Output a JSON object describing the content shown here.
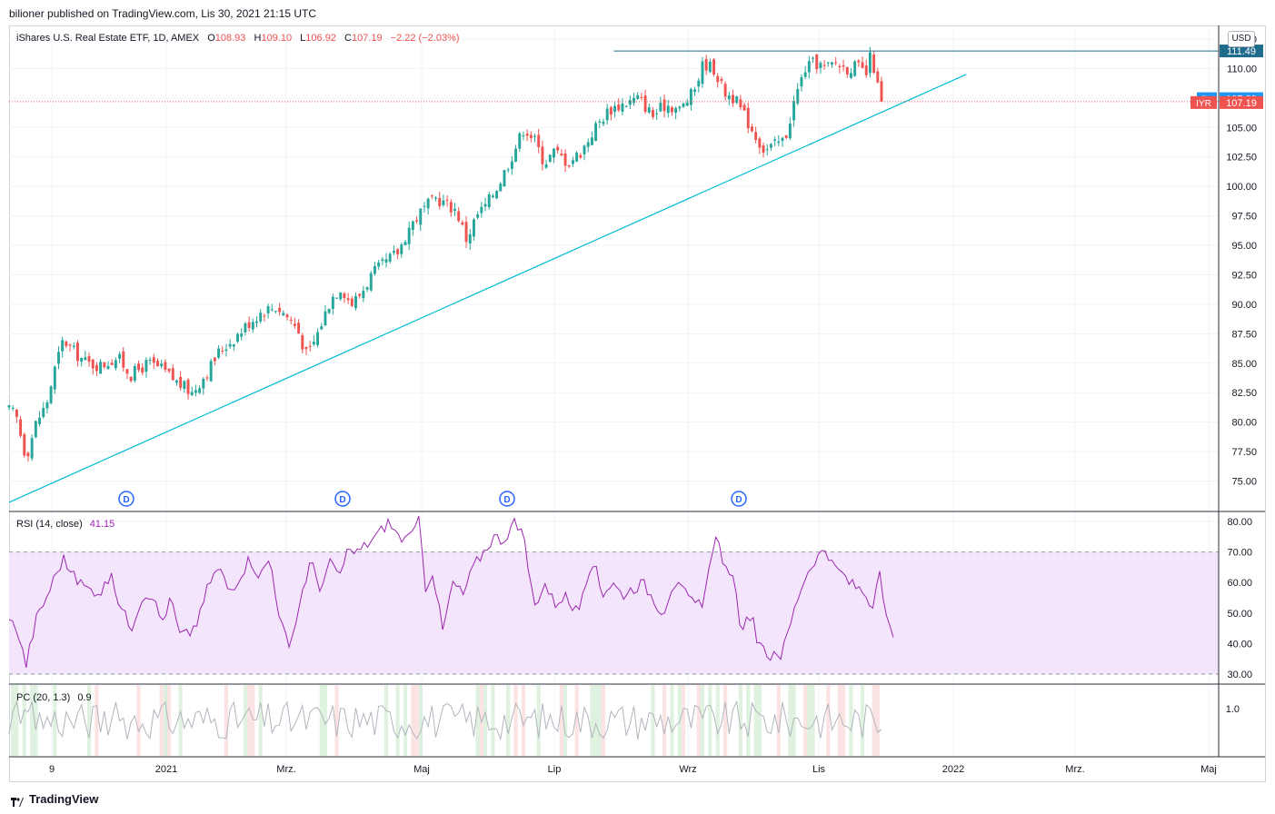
{
  "header": {
    "published": "bilioner published on TradingView.com, Lis 30, 2021 21:15 UTC"
  },
  "legend": {
    "symbol": "iShares U.S. Real Estate ETF, 1D, AMEX",
    "o_label": "O",
    "o_value": "108.93",
    "h_label": "H",
    "h_value": "109.10",
    "l_label": "L",
    "l_value": "106.92",
    "c_label": "C",
    "c_value": "107.19",
    "change": "−2.22 (−2.03%)"
  },
  "currency": "USD",
  "rsi": {
    "title": "RSI (14, close)",
    "value": "41.15"
  },
  "pc": {
    "title": "PC (20, 1.3)",
    "value": "0.9"
  },
  "footer": {
    "brand": "TradingView"
  },
  "colors": {
    "up": "#26a69a",
    "down": "#ef5350",
    "trendline": "#00bcd4",
    "resistance": "#1e6b8c",
    "rsi_line": "#9c27b0",
    "rsi_band": "#f3e5fc"
  },
  "chart_data": [
    {
      "type": "candlestick",
      "ylim": [
        72.5,
        113.5
      ],
      "y_ticks": [
        "75.00",
        "77.50",
        "80.00",
        "82.50",
        "85.00",
        "87.50",
        "90.00",
        "92.50",
        "95.00",
        "97.50",
        "100.00",
        "102.50",
        "105.00",
        "107.50",
        "110.00",
        "112.50"
      ],
      "x_ticks": [
        "9",
        "2021",
        "Mrz.",
        "Maj",
        "Lip",
        "Wrz",
        "Lis",
        "2022",
        "Mrz.",
        "Maj"
      ],
      "close_path": [
        {
          "x": 0,
          "y": 81.0
        },
        {
          "x": 4,
          "y": 80.6
        },
        {
          "x": 10,
          "y": 77.0
        },
        {
          "x": 16,
          "y": 80.0
        },
        {
          "x": 22,
          "y": 81.5
        },
        {
          "x": 27,
          "y": 84.5
        },
        {
          "x": 32,
          "y": 87.0
        },
        {
          "x": 38,
          "y": 86.0
        },
        {
          "x": 46,
          "y": 85.0
        },
        {
          "x": 54,
          "y": 84.8
        },
        {
          "x": 64,
          "y": 85.5
        },
        {
          "x": 72,
          "y": 84.0
        },
        {
          "x": 82,
          "y": 85.0
        },
        {
          "x": 90,
          "y": 84.5
        },
        {
          "x": 98,
          "y": 83.5
        },
        {
          "x": 108,
          "y": 82.5
        },
        {
          "x": 118,
          "y": 84.5
        },
        {
          "x": 124,
          "y": 86.0
        },
        {
          "x": 132,
          "y": 87.0
        },
        {
          "x": 142,
          "y": 88.5
        },
        {
          "x": 150,
          "y": 89.5
        },
        {
          "x": 158,
          "y": 89.8
        },
        {
          "x": 164,
          "y": 89.0
        },
        {
          "x": 170,
          "y": 88.0
        },
        {
          "x": 176,
          "y": 85.5
        },
        {
          "x": 182,
          "y": 87.5
        },
        {
          "x": 190,
          "y": 90.5
        },
        {
          "x": 196,
          "y": 91.5
        },
        {
          "x": 202,
          "y": 90.0
        },
        {
          "x": 208,
          "y": 91.0
        },
        {
          "x": 214,
          "y": 92.5
        },
        {
          "x": 222,
          "y": 93.5
        },
        {
          "x": 230,
          "y": 94.5
        },
        {
          "x": 236,
          "y": 96.5
        },
        {
          "x": 244,
          "y": 98.0
        },
        {
          "x": 252,
          "y": 99.0
        },
        {
          "x": 258,
          "y": 98.5
        },
        {
          "x": 264,
          "y": 98.0
        },
        {
          "x": 270,
          "y": 95.5
        },
        {
          "x": 276,
          "y": 97.5
        },
        {
          "x": 282,
          "y": 98.5
        },
        {
          "x": 290,
          "y": 100.5
        },
        {
          "x": 298,
          "y": 103.0
        },
        {
          "x": 304,
          "y": 105.0
        },
        {
          "x": 310,
          "y": 104.0
        },
        {
          "x": 316,
          "y": 102.0
        },
        {
          "x": 322,
          "y": 103.0
        },
        {
          "x": 330,
          "y": 102.0
        },
        {
          "x": 338,
          "y": 103.0
        },
        {
          "x": 346,
          "y": 105.0
        },
        {
          "x": 354,
          "y": 106.5
        },
        {
          "x": 362,
          "y": 107.0
        },
        {
          "x": 372,
          "y": 107.5
        },
        {
          "x": 380,
          "y": 106.0
        },
        {
          "x": 388,
          "y": 107.0
        },
        {
          "x": 396,
          "y": 106.5
        },
        {
          "x": 404,
          "y": 108.0
        },
        {
          "x": 410,
          "y": 110.5
        },
        {
          "x": 416,
          "y": 110.0
        },
        {
          "x": 422,
          "y": 108.0
        },
        {
          "x": 428,
          "y": 107.5
        },
        {
          "x": 434,
          "y": 106.0
        },
        {
          "x": 440,
          "y": 104.5
        },
        {
          "x": 446,
          "y": 103.0
        },
        {
          "x": 452,
          "y": 103.5
        },
        {
          "x": 458,
          "y": 104.0
        },
        {
          "x": 464,
          "y": 107.5
        },
        {
          "x": 470,
          "y": 110.0
        },
        {
          "x": 476,
          "y": 110.5
        },
        {
          "x": 482,
          "y": 110.0
        },
        {
          "x": 488,
          "y": 110.5
        },
        {
          "x": 494,
          "y": 110.0
        },
        {
          "x": 500,
          "y": 110.2
        },
        {
          "x": 506,
          "y": 109.5
        },
        {
          "x": 509,
          "y": 111.3
        },
        {
          "x": 512,
          "y": 108.9
        },
        {
          "x": 515,
          "y": 107.19
        }
      ],
      "resistance": 111.49,
      "trendline": [
        {
          "x": 0,
          "y": 73.2
        },
        {
          "x": 565,
          "y": 109.5
        }
      ],
      "last_values": [
        {
          "label": "",
          "value": "111.49",
          "color": "#1e6b8c"
        },
        {
          "label": "Po",
          "value": "107.29",
          "color": "#2196f3"
        },
        {
          "label": "IYR",
          "value": "107.19",
          "color": "#ef5350"
        }
      ],
      "dividend_markers": [
        "D",
        "D",
        "D",
        "D"
      ],
      "x_domain": [
        0,
        710
      ]
    },
    {
      "type": "line",
      "title": "RSI (14, close)",
      "ylim": [
        27,
        83
      ],
      "y_ticks": [
        "30.00",
        "40.00",
        "50.00",
        "60.00",
        "70.00",
        "80.00"
      ],
      "band": [
        30,
        70
      ],
      "values_path": [
        {
          "x": 0,
          "y": 47
        },
        {
          "x": 4,
          "y": 46
        },
        {
          "x": 10,
          "y": 33
        },
        {
          "x": 16,
          "y": 48
        },
        {
          "x": 22,
          "y": 55
        },
        {
          "x": 27,
          "y": 62
        },
        {
          "x": 32,
          "y": 68
        },
        {
          "x": 38,
          "y": 62
        },
        {
          "x": 46,
          "y": 58
        },
        {
          "x": 54,
          "y": 57
        },
        {
          "x": 60,
          "y": 62
        },
        {
          "x": 66,
          "y": 52
        },
        {
          "x": 72,
          "y": 45
        },
        {
          "x": 78,
          "y": 55
        },
        {
          "x": 84,
          "y": 57
        },
        {
          "x": 90,
          "y": 47
        },
        {
          "x": 96,
          "y": 55
        },
        {
          "x": 100,
          "y": 43
        },
        {
          "x": 106,
          "y": 43
        },
        {
          "x": 112,
          "y": 48
        },
        {
          "x": 118,
          "y": 60
        },
        {
          "x": 124,
          "y": 65
        },
        {
          "x": 130,
          "y": 57
        },
        {
          "x": 136,
          "y": 62
        },
        {
          "x": 142,
          "y": 68
        },
        {
          "x": 148,
          "y": 62
        },
        {
          "x": 154,
          "y": 68
        },
        {
          "x": 160,
          "y": 48
        },
        {
          "x": 166,
          "y": 37
        },
        {
          "x": 172,
          "y": 55
        },
        {
          "x": 178,
          "y": 67
        },
        {
          "x": 184,
          "y": 58
        },
        {
          "x": 190,
          "y": 67
        },
        {
          "x": 196,
          "y": 62
        },
        {
          "x": 200,
          "y": 70
        },
        {
          "x": 206,
          "y": 70
        },
        {
          "x": 212,
          "y": 73
        },
        {
          "x": 218,
          "y": 76
        },
        {
          "x": 224,
          "y": 80
        },
        {
          "x": 230,
          "y": 75
        },
        {
          "x": 236,
          "y": 74
        },
        {
          "x": 242,
          "y": 80
        },
        {
          "x": 246,
          "y": 58
        },
        {
          "x": 250,
          "y": 64
        },
        {
          "x": 256,
          "y": 44
        },
        {
          "x": 262,
          "y": 60
        },
        {
          "x": 268,
          "y": 56
        },
        {
          "x": 274,
          "y": 65
        },
        {
          "x": 280,
          "y": 70
        },
        {
          "x": 286,
          "y": 75
        },
        {
          "x": 292,
          "y": 74
        },
        {
          "x": 298,
          "y": 80
        },
        {
          "x": 304,
          "y": 74
        },
        {
          "x": 310,
          "y": 52
        },
        {
          "x": 316,
          "y": 60
        },
        {
          "x": 322,
          "y": 53
        },
        {
          "x": 328,
          "y": 56
        },
        {
          "x": 334,
          "y": 50
        },
        {
          "x": 340,
          "y": 56
        },
        {
          "x": 346,
          "y": 68
        },
        {
          "x": 350,
          "y": 56
        },
        {
          "x": 356,
          "y": 60
        },
        {
          "x": 362,
          "y": 56
        },
        {
          "x": 368,
          "y": 58
        },
        {
          "x": 374,
          "y": 60
        },
        {
          "x": 380,
          "y": 55
        },
        {
          "x": 386,
          "y": 50
        },
        {
          "x": 392,
          "y": 60
        },
        {
          "x": 398,
          "y": 57
        },
        {
          "x": 404,
          "y": 53
        },
        {
          "x": 410,
          "y": 52
        },
        {
          "x": 414,
          "y": 70
        },
        {
          "x": 418,
          "y": 75
        },
        {
          "x": 424,
          "y": 62
        },
        {
          "x": 428,
          "y": 60
        },
        {
          "x": 432,
          "y": 45
        },
        {
          "x": 438,
          "y": 50
        },
        {
          "x": 442,
          "y": 40
        },
        {
          "x": 448,
          "y": 35
        },
        {
          "x": 452,
          "y": 38
        },
        {
          "x": 456,
          "y": 36
        },
        {
          "x": 462,
          "y": 48
        },
        {
          "x": 466,
          "y": 56
        },
        {
          "x": 470,
          "y": 62
        },
        {
          "x": 476,
          "y": 68
        },
        {
          "x": 482,
          "y": 71
        },
        {
          "x": 486,
          "y": 65
        },
        {
          "x": 492,
          "y": 63
        },
        {
          "x": 496,
          "y": 60
        },
        {
          "x": 502,
          "y": 58
        },
        {
          "x": 506,
          "y": 56
        },
        {
          "x": 510,
          "y": 52
        },
        {
          "x": 514,
          "y": 62
        },
        {
          "x": 518,
          "y": 48
        },
        {
          "x": 522,
          "y": 41
        }
      ]
    },
    {
      "type": "line",
      "title": "PC (20, 1.3)",
      "ylim": [
        0.0,
        1.5
      ],
      "y_ticks": [
        "1.0"
      ],
      "seed": 17
    }
  ]
}
